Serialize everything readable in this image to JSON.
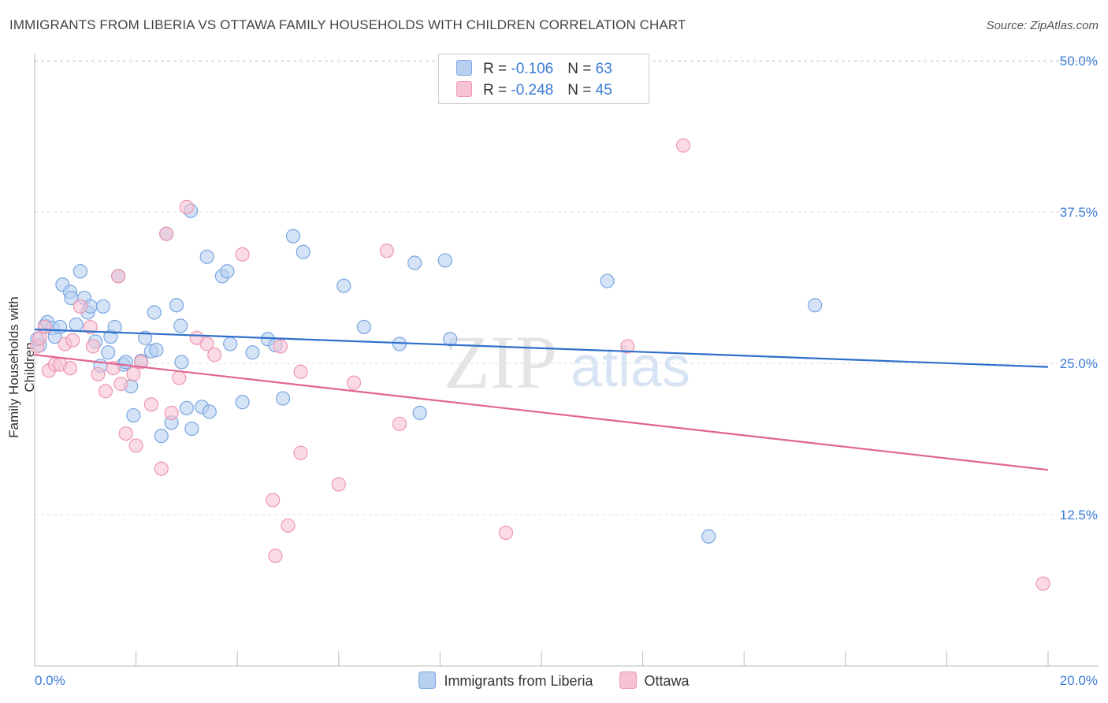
{
  "title": "IMMIGRANTS FROM LIBERIA VS OTTAWA FAMILY HOUSEHOLDS WITH CHILDREN CORRELATION CHART",
  "source": "Source: ZipAtlas.com",
  "watermark": {
    "zip": "ZIP",
    "atlas": "atlas"
  },
  "legend_top": {
    "rows": [
      {
        "r_label": "R = ",
        "r_value": "-0.106",
        "n_label": "N = ",
        "n_value": "63"
      },
      {
        "r_label": "R = ",
        "r_value": "-0.248",
        "n_label": "N = ",
        "n_value": "45"
      }
    ]
  },
  "colors": {
    "blue_fill": "#b8d0f0",
    "blue_stroke": "#7aa6e0",
    "blue_line": "#2f6fcb",
    "pink_fill": "#f7c3d3",
    "pink_stroke": "#ee97b3",
    "pink_line": "#e0648f",
    "tick_label": "#3a7bd5"
  },
  "chart_data": {
    "type": "scatter",
    "title": "IMMIGRANTS FROM LIBERIA VS OTTAWA FAMILY HOUSEHOLDS WITH CHILDREN CORRELATION CHART",
    "xlabel": "",
    "ylabel": "Family Households with Children",
    "xlim": [
      0,
      20
    ],
    "ylim": [
      0,
      52
    ],
    "x_tick_labels": [
      "0.0%",
      "20.0%"
    ],
    "y_ticks": [
      12.5,
      25.0,
      37.5,
      50.0
    ],
    "y_tick_labels": [
      "12.5%",
      "25.0%",
      "37.5%",
      "50.0%"
    ],
    "legend_position": "bottom",
    "series": [
      {
        "name": "Immigrants from Liberia",
        "trend": {
          "x": [
            0,
            20
          ],
          "y": [
            27.8,
            24.7
          ]
        },
        "points": [
          [
            0.1,
            26.5
          ],
          [
            0.2,
            28.1
          ],
          [
            0.25,
            28.4
          ],
          [
            0.35,
            27.9
          ],
          [
            0.4,
            27.2
          ],
          [
            0.5,
            28.0
          ],
          [
            0.55,
            31.5
          ],
          [
            0.7,
            30.9
          ],
          [
            0.72,
            30.4
          ],
          [
            0.82,
            28.2
          ],
          [
            0.9,
            32.6
          ],
          [
            0.98,
            30.4
          ],
          [
            1.05,
            29.2
          ],
          [
            1.1,
            29.7
          ],
          [
            1.2,
            26.8
          ],
          [
            1.3,
            24.8
          ],
          [
            1.35,
            29.7
          ],
          [
            1.45,
            25.9
          ],
          [
            1.5,
            27.2
          ],
          [
            1.58,
            28.0
          ],
          [
            1.65,
            32.2
          ],
          [
            1.75,
            24.9
          ],
          [
            1.8,
            25.1
          ],
          [
            1.9,
            23.1
          ],
          [
            1.95,
            20.7
          ],
          [
            2.1,
            25.2
          ],
          [
            2.18,
            27.1
          ],
          [
            2.3,
            26.0
          ],
          [
            2.36,
            29.2
          ],
          [
            2.4,
            26.1
          ],
          [
            2.5,
            19.0
          ],
          [
            2.6,
            35.7
          ],
          [
            2.7,
            20.1
          ],
          [
            2.8,
            29.8
          ],
          [
            2.88,
            28.1
          ],
          [
            2.9,
            25.1
          ],
          [
            3.0,
            21.3
          ],
          [
            3.1,
            19.6
          ],
          [
            3.08,
            37.6
          ],
          [
            3.3,
            21.4
          ],
          [
            3.4,
            33.8
          ],
          [
            3.45,
            21.0
          ],
          [
            3.7,
            32.2
          ],
          [
            3.8,
            32.6
          ],
          [
            3.86,
            26.6
          ],
          [
            4.1,
            21.8
          ],
          [
            4.3,
            25.9
          ],
          [
            4.6,
            27.0
          ],
          [
            4.75,
            26.5
          ],
          [
            4.9,
            22.1
          ],
          [
            5.1,
            35.5
          ],
          [
            5.3,
            34.2
          ],
          [
            6.1,
            31.4
          ],
          [
            6.5,
            28.0
          ],
          [
            7.2,
            26.6
          ],
          [
            7.5,
            33.3
          ],
          [
            7.6,
            20.9
          ],
          [
            8.1,
            33.5
          ],
          [
            8.2,
            27.0
          ],
          [
            11.3,
            31.8
          ],
          [
            13.3,
            10.7
          ],
          [
            15.4,
            29.8
          ],
          [
            0.05,
            27.0
          ]
        ]
      },
      {
        "name": "Ottawa",
        "trend": {
          "x": [
            0,
            20
          ],
          "y": [
            25.7,
            16.2
          ]
        },
        "points": [
          [
            0.05,
            26.4
          ],
          [
            0.1,
            27.1
          ],
          [
            0.2,
            28.0
          ],
          [
            0.28,
            24.4
          ],
          [
            0.4,
            24.9
          ],
          [
            0.5,
            24.9
          ],
          [
            0.6,
            26.6
          ],
          [
            0.7,
            24.6
          ],
          [
            0.75,
            26.9
          ],
          [
            0.9,
            29.7
          ],
          [
            1.1,
            28.0
          ],
          [
            1.15,
            26.4
          ],
          [
            1.25,
            24.1
          ],
          [
            1.4,
            22.7
          ],
          [
            1.55,
            24.6
          ],
          [
            1.65,
            32.2
          ],
          [
            1.7,
            23.3
          ],
          [
            1.8,
            19.2
          ],
          [
            1.95,
            24.1
          ],
          [
            2.0,
            18.2
          ],
          [
            2.1,
            25.1
          ],
          [
            2.3,
            21.6
          ],
          [
            2.5,
            16.3
          ],
          [
            2.6,
            35.7
          ],
          [
            2.7,
            20.9
          ],
          [
            2.85,
            23.8
          ],
          [
            3.0,
            37.9
          ],
          [
            3.2,
            27.1
          ],
          [
            3.4,
            26.6
          ],
          [
            3.55,
            25.7
          ],
          [
            4.1,
            34.0
          ],
          [
            4.7,
            13.7
          ],
          [
            4.75,
            9.1
          ],
          [
            4.85,
            26.4
          ],
          [
            5.0,
            11.6
          ],
          [
            5.25,
            24.3
          ],
          [
            5.25,
            17.6
          ],
          [
            6.0,
            15.0
          ],
          [
            6.3,
            23.4
          ],
          [
            6.95,
            34.3
          ],
          [
            7.2,
            20.0
          ],
          [
            9.3,
            11.0
          ],
          [
            11.7,
            26.4
          ],
          [
            12.8,
            43.0
          ],
          [
            19.9,
            6.8
          ]
        ]
      }
    ]
  }
}
